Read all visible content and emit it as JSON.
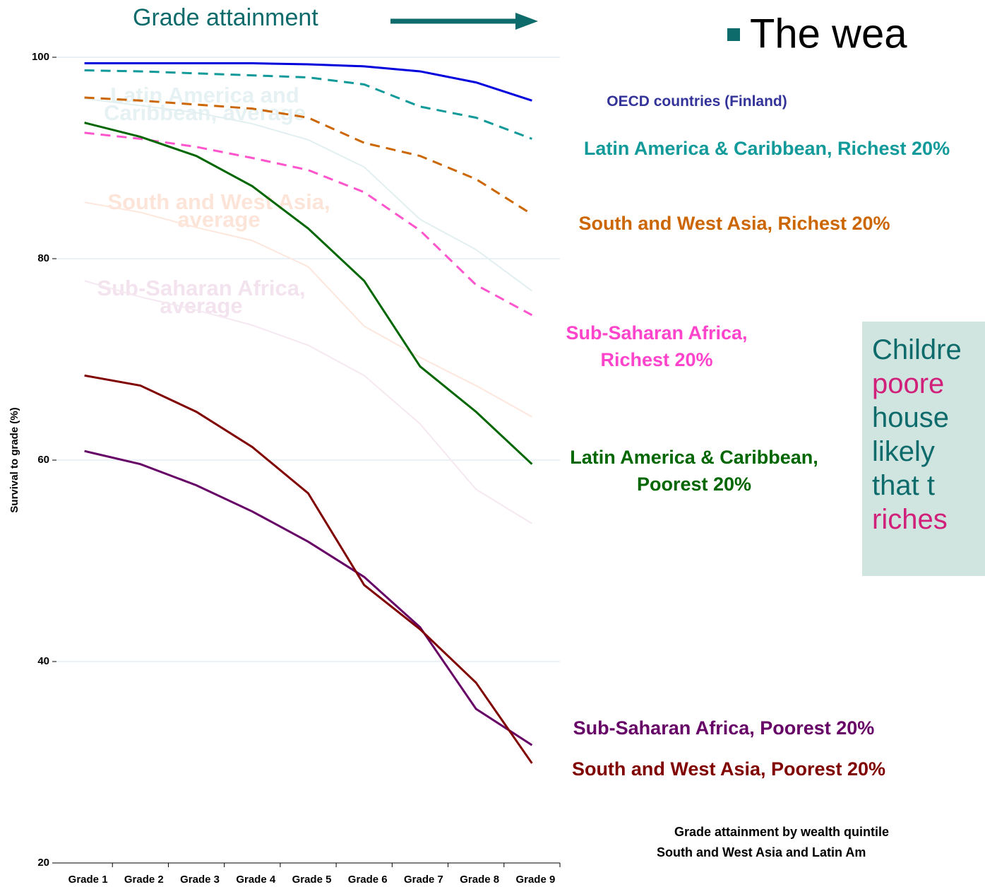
{
  "chart_data": {
    "type": "line",
    "title": "Grade attainment",
    "heading": "The wea",
    "y_label": "Survival to grade (%)",
    "footnote": [
      "Grade attainment by wealth quintile",
      "South and West Asia and Latin Am"
    ],
    "callout": [
      {
        "text": "Childre",
        "color": "#0d6b6b"
      },
      {
        "text": "poore",
        "color": "#d0207a"
      },
      {
        "text": "house",
        "color": "#0d6b6b"
      },
      {
        "text": "likely",
        "color": "#0d6b6b"
      },
      {
        "text": "that t",
        "color": "#0d6b6b"
      },
      {
        "text": "riches",
        "color": "#d0207a"
      }
    ],
    "categories": [
      "Grade 1",
      "Grade 2",
      "Grade 3",
      "Grade 4",
      "Grade 5",
      "Grade 6",
      "Grade 7",
      "Grade 8",
      "Grade 9"
    ],
    "ylim": [
      20,
      100
    ],
    "yticks": [
      20,
      40,
      60,
      80,
      100
    ],
    "grid": true,
    "series": [
      {
        "name": "Latin America and Caribbean, average",
        "color": "#e2eff1",
        "label_color": "#e6f1f3",
        "values": [
          95.9,
          95.2,
          94.5,
          93.4,
          91.8,
          89.1,
          83.9,
          80.9,
          76.8
        ]
      },
      {
        "name": "South and West Asia, average",
        "color": "#fde6dc",
        "label_color": "#fde4d8",
        "values": [
          85.6,
          84.6,
          83.1,
          81.8,
          79.2,
          73.3,
          70.2,
          67.4,
          64.3
        ]
      },
      {
        "name": "Sub-Saharan Africa, average",
        "color": "#f5e8f1",
        "label_color": "#f3e3ee",
        "values": [
          77.8,
          76.2,
          74.9,
          73.4,
          71.4,
          68.4,
          63.6,
          57.1,
          53.7
        ]
      },
      {
        "name": "OECD countries (Finland)",
        "color": "#0000dd",
        "label_color": "#333399",
        "values": [
          99.4,
          99.4,
          99.4,
          99.4,
          99.3,
          99.1,
          98.6,
          97.5,
          95.7
        ]
      },
      {
        "name": "Latin America & Caribbean, Richest 20%",
        "color": "#129a9a",
        "label_color": "#129a9a",
        "dashed": true,
        "values": [
          98.7,
          98.6,
          98.4,
          98.2,
          98.0,
          97.3,
          95.1,
          94.0,
          91.9
        ]
      },
      {
        "name": "South and West Asia, Richest 20%",
        "color": "#cc6600",
        "label_color": "#cc6600",
        "dashed": true,
        "values": [
          96.0,
          95.7,
          95.3,
          94.9,
          94.0,
          91.5,
          90.2,
          87.9,
          84.4
        ]
      },
      {
        "name": "Sub-Saharan Africa, Richest 20%",
        "color": "#ff55cc",
        "label_color": "#ff44cc",
        "dashed": true,
        "values": [
          92.5,
          91.9,
          91.1,
          90.0,
          88.8,
          86.6,
          82.8,
          77.4,
          74.4
        ]
      },
      {
        "name": "Latin America & Caribbean, Poorest 20%",
        "color": "#006600",
        "label_color": "#006600",
        "values": [
          93.5,
          92.1,
          90.2,
          87.2,
          83.0,
          77.8,
          69.3,
          64.8,
          59.6
        ]
      },
      {
        "name": "Sub-Saharan Africa, Poorest 20%",
        "color": "#660066",
        "label_color": "#660066",
        "values": [
          60.9,
          59.6,
          57.5,
          54.9,
          51.9,
          48.4,
          43.4,
          35.3,
          31.7
        ]
      },
      {
        "name": "South and West Asia, Poorest 20%",
        "color": "#800000",
        "label_color": "#800000",
        "values": [
          68.4,
          67.4,
          64.8,
          61.3,
          56.7,
          47.6,
          43.2,
          37.9,
          29.9
        ]
      }
    ]
  }
}
